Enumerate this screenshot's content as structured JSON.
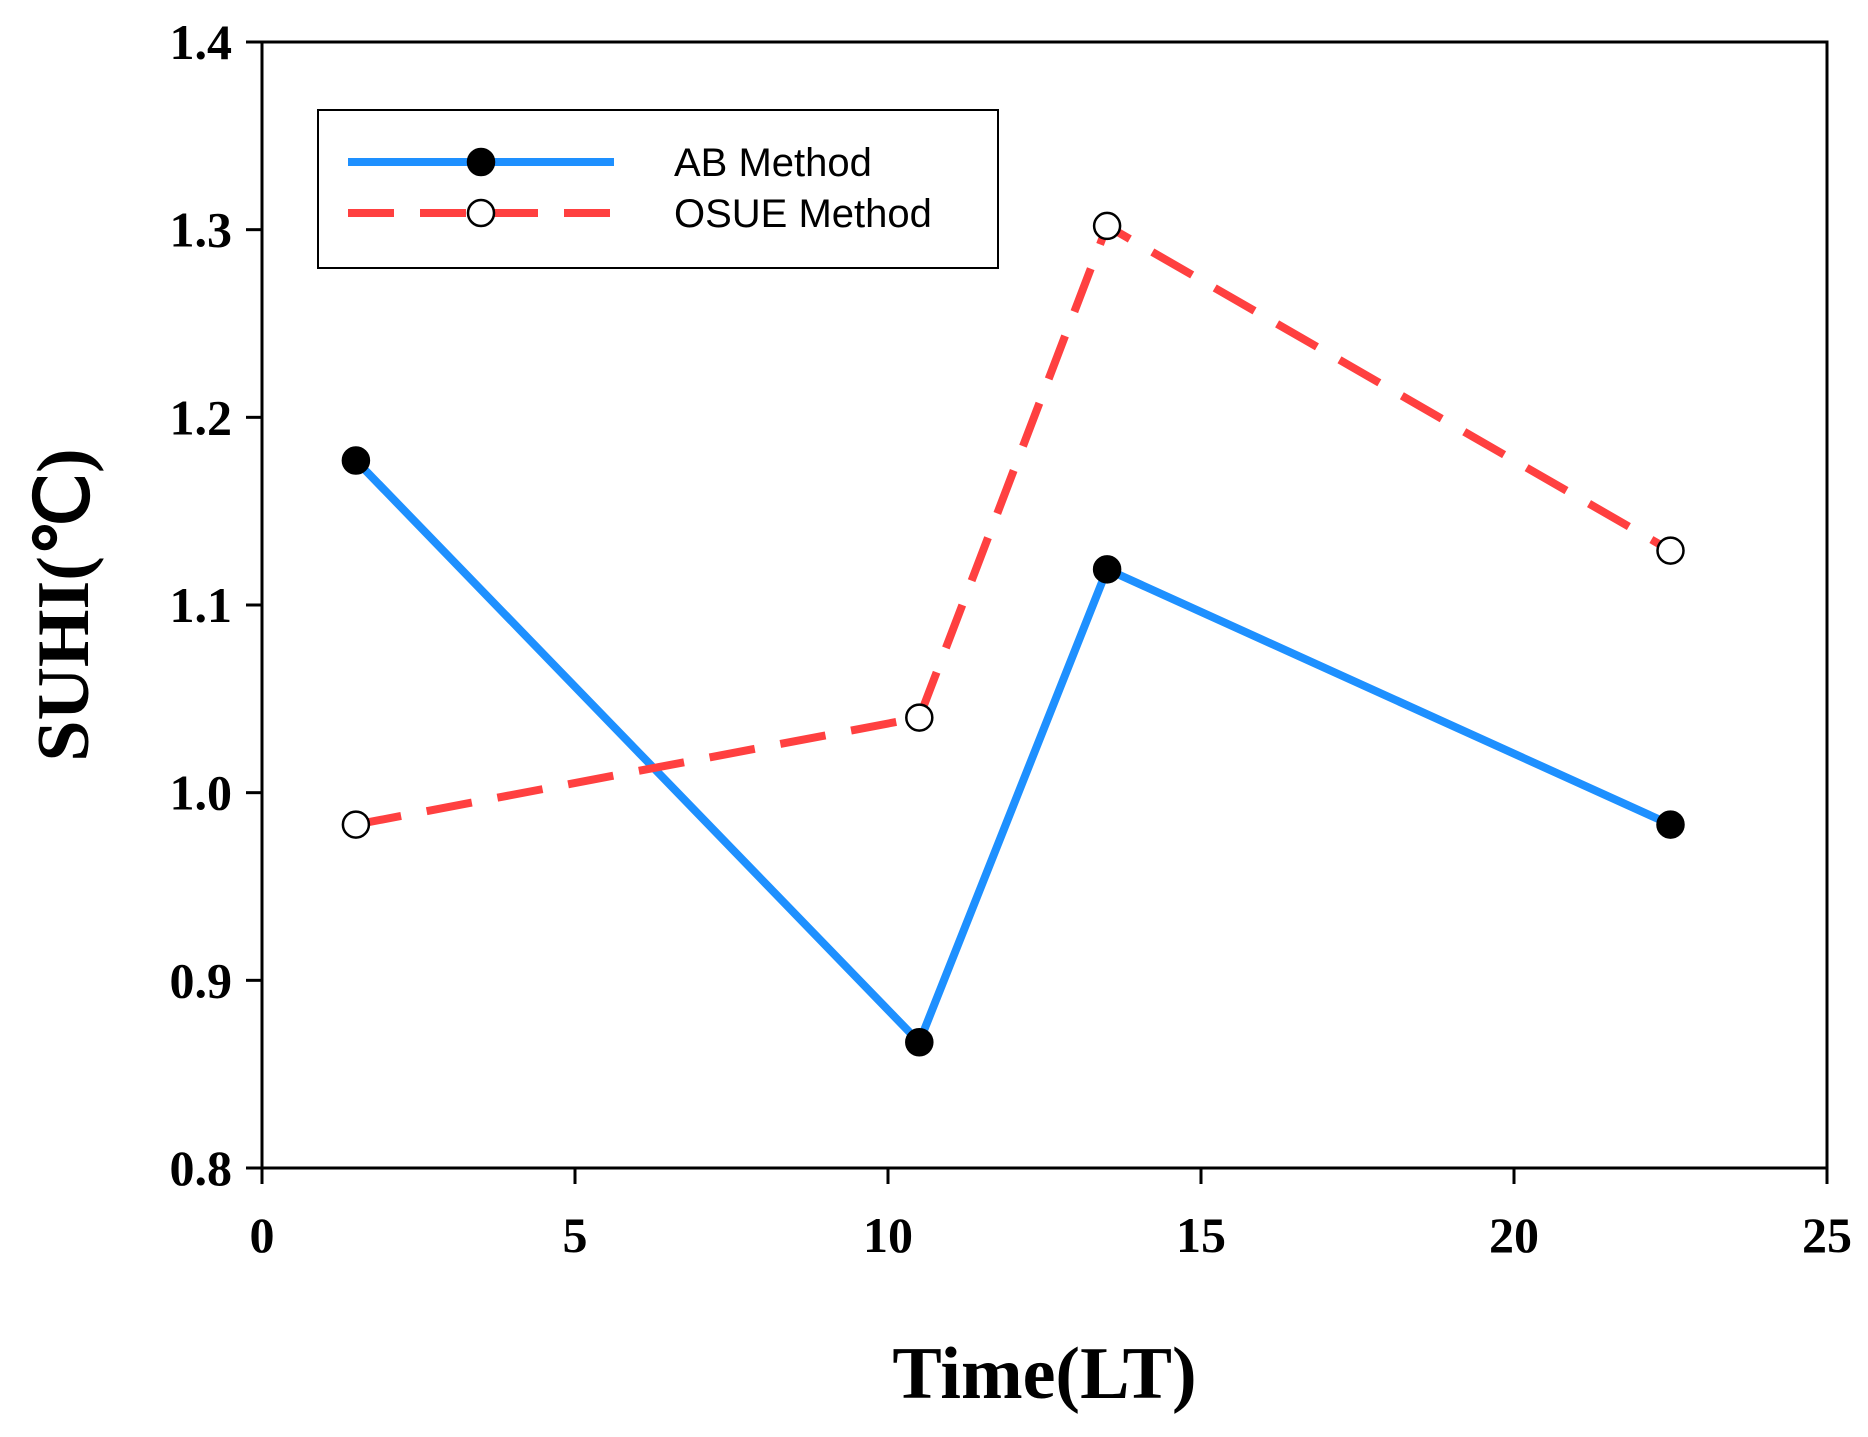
{
  "chart_data": {
    "type": "line",
    "title": "",
    "xlabel": "Time(LT)",
    "ylabel": "SUHI(℃)",
    "xlim": [
      0,
      25
    ],
    "ylim": [
      0.8,
      1.4
    ],
    "x_ticks": [
      "0",
      "5",
      "10",
      "15",
      "20",
      "25"
    ],
    "x_tick_values": [
      0,
      5,
      10,
      15,
      20,
      25
    ],
    "y_ticks": [
      "0.8",
      "0.9",
      "1.0",
      "1.1",
      "1.2",
      "1.3",
      "1.4"
    ],
    "y_tick_values": [
      0.8,
      0.9,
      1.0,
      1.1,
      1.2,
      1.3,
      1.4
    ],
    "grid": false,
    "legend_position": "top-left",
    "series": [
      {
        "name": "AB Method",
        "x": [
          1.5,
          10.5,
          13.5,
          22.5
        ],
        "values": [
          1.177,
          0.867,
          1.119,
          0.983
        ],
        "color": "#1e90ff",
        "line_style": "solid",
        "marker": "filled-circle"
      },
      {
        "name": "OSUE Method",
        "x": [
          1.5,
          10.5,
          13.5,
          22.5
        ],
        "values": [
          0.983,
          1.04,
          1.302,
          1.129
        ],
        "color": "#ff4040",
        "line_style": "dashed",
        "marker": "open-circle"
      }
    ]
  }
}
